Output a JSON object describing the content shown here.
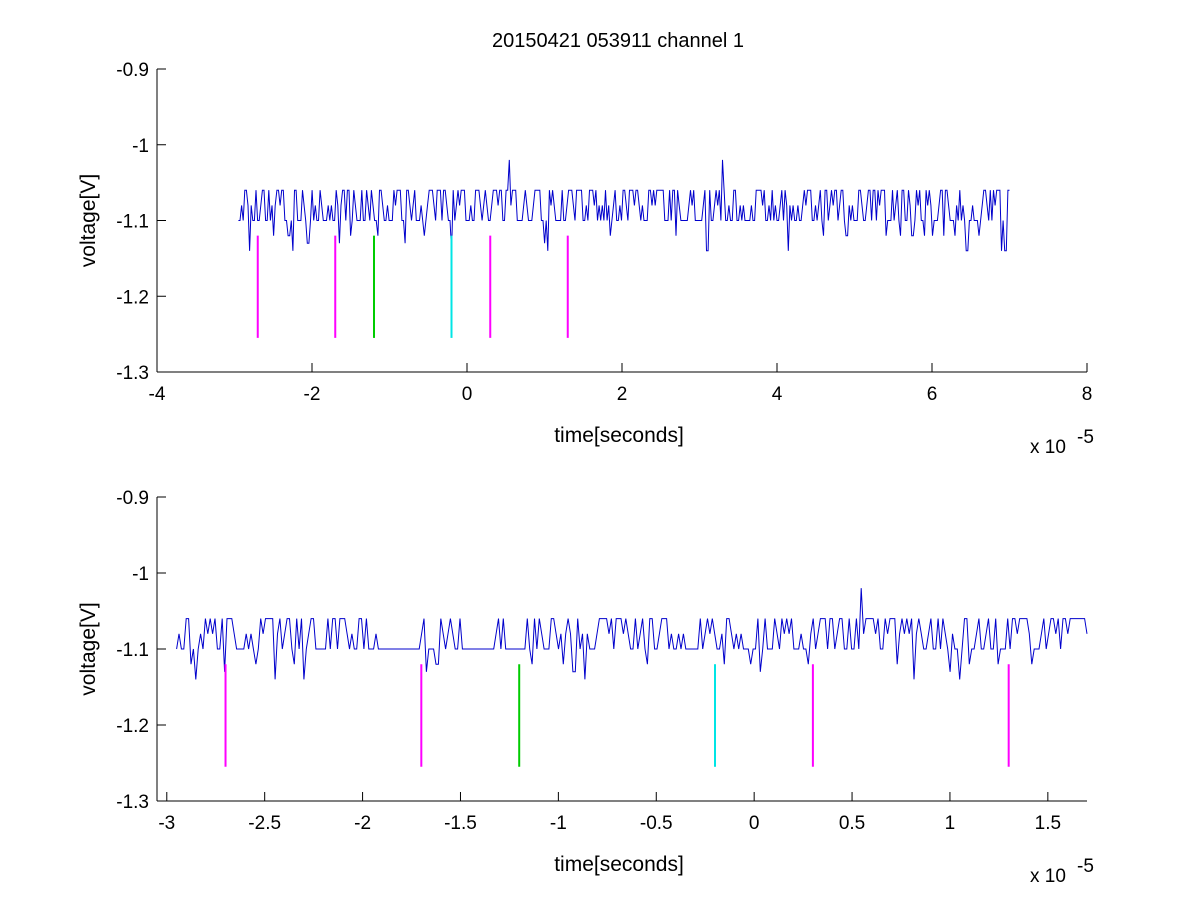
{
  "title": "20150421 053911 channel 1",
  "colors": {
    "signal": "#0000cc",
    "marker_magenta": "#ff00ff",
    "marker_green": "#00cc00",
    "marker_cyan": "#00e5e5",
    "axis": "#000000"
  },
  "chart_data": [
    {
      "type": "line",
      "xlabel": "time[seconds]",
      "ylabel": "voltage[V]",
      "x_exponent_label": "x 10",
      "x_exponent": "-5",
      "xlim": [
        -4,
        8
      ],
      "ylim": [
        -1.3,
        -0.9
      ],
      "y_reversed": true,
      "xticks": [
        "-4",
        "-2",
        "0",
        "2",
        "4",
        "6",
        "8"
      ],
      "xtick_values": [
        -4,
        -2,
        0,
        2,
        4,
        6,
        8
      ],
      "yticks": [
        "-0.9",
        "-1",
        "-1.1",
        "-1.2",
        "-1.3"
      ],
      "ytick_values": [
        -0.9,
        -1.0,
        -1.1,
        -1.2,
        -1.3
      ],
      "series": [
        {
          "color": "#0000cc",
          "x_range": [
            -2.95,
            7.0
          ],
          "levels": [
            -1.06,
            -1.08,
            -1.1
          ],
          "dips": [
            [
              -2.8,
              -1.14
            ],
            [
              -2.5,
              -1.12
            ],
            [
              -2.3,
              -1.12
            ],
            [
              -2.25,
              -1.14
            ],
            [
              -2.05,
              -1.13
            ],
            [
              -1.65,
              -1.13
            ],
            [
              -1.5,
              -1.12
            ],
            [
              -1.15,
              -1.12
            ],
            [
              -0.8,
              -1.13
            ],
            [
              -0.55,
              -1.12
            ],
            [
              -0.2,
              -1.14
            ],
            [
              1.0,
              -1.13
            ],
            [
              1.05,
              -1.14
            ],
            [
              1.85,
              -1.12
            ],
            [
              2.7,
              -1.12
            ],
            [
              3.1,
              -1.14
            ],
            [
              4.15,
              -1.14
            ],
            [
              4.6,
              -1.12
            ],
            [
              4.9,
              -1.12
            ],
            [
              5.4,
              -1.12
            ],
            [
              5.6,
              -1.12
            ],
            [
              5.75,
              -1.12
            ],
            [
              5.9,
              -1.12
            ],
            [
              6.0,
              -1.12
            ],
            [
              6.15,
              -1.12
            ],
            [
              6.3,
              -1.12
            ],
            [
              6.45,
              -1.14
            ],
            [
              6.6,
              -1.12
            ],
            [
              6.9,
              -1.14
            ],
            [
              6.95,
              -1.14
            ]
          ],
          "spikes": [
            [
              0.55,
              -1.02
            ],
            [
              3.3,
              -1.02
            ]
          ]
        }
      ],
      "markers": [
        {
          "x": -2.7,
          "color": "#ff00ff",
          "y_top": -1.12,
          "y_bottom": -1.255
        },
        {
          "x": -1.7,
          "color": "#ff00ff",
          "y_top": -1.12,
          "y_bottom": -1.255
        },
        {
          "x": -1.2,
          "color": "#00cc00",
          "y_top": -1.12,
          "y_bottom": -1.255
        },
        {
          "x": -0.2,
          "color": "#00e5e5",
          "y_top": -1.12,
          "y_bottom": -1.255
        },
        {
          "x": 0.3,
          "color": "#ff00ff",
          "y_top": -1.12,
          "y_bottom": -1.255
        },
        {
          "x": 1.3,
          "color": "#ff00ff",
          "y_top": -1.12,
          "y_bottom": -1.255
        }
      ]
    },
    {
      "type": "line",
      "xlabel": "time[seconds]",
      "ylabel": "voltage[V]",
      "x_exponent_label": "x 10",
      "x_exponent": "-5",
      "xlim": [
        -3.05,
        1.7
      ],
      "ylim": [
        -1.3,
        -0.9
      ],
      "y_reversed": true,
      "xticks": [
        "-3",
        "-2.5",
        "-2",
        "-1.5",
        "-1",
        "-0.5",
        "0",
        "0.5",
        "1",
        "1.5"
      ],
      "xtick_values": [
        -3,
        -2.5,
        -2,
        -1.5,
        -1,
        -0.5,
        0,
        0.5,
        1,
        1.5
      ],
      "yticks": [
        "-0.9",
        "-1",
        "-1.1",
        "-1.2",
        "-1.3"
      ],
      "ytick_values": [
        -0.9,
        -1.0,
        -1.1,
        -1.2,
        -1.3
      ],
      "series": [
        {
          "color": "#0000cc",
          "x_range": [
            -2.95,
            1.7
          ],
          "levels": [
            -1.06,
            -1.08,
            -1.1
          ],
          "flat_segments": [
            [
              -1.93,
              -1.7
            ],
            [
              -1.5,
              -1.35
            ],
            [
              -1.28,
              -1.2
            ]
          ],
          "dips": [
            [
              -2.88,
              -1.12
            ],
            [
              -2.85,
              -1.14
            ],
            [
              -2.7,
              -1.13
            ],
            [
              -2.55,
              -1.12
            ],
            [
              -2.45,
              -1.14
            ],
            [
              -2.35,
              -1.12
            ],
            [
              -2.3,
              -1.14
            ],
            [
              -1.67,
              -1.13
            ],
            [
              -1.62,
              -1.12
            ],
            [
              -1.13,
              -1.12
            ],
            [
              -0.97,
              -1.12
            ],
            [
              -0.92,
              -1.13
            ],
            [
              -0.86,
              -1.14
            ],
            [
              -0.55,
              -1.12
            ],
            [
              -0.15,
              -1.12
            ],
            [
              -0.02,
              -1.12
            ],
            [
              0.03,
              -1.13
            ],
            [
              0.28,
              -1.12
            ],
            [
              0.73,
              -1.12
            ],
            [
              0.82,
              -1.14
            ],
            [
              1.0,
              -1.13
            ],
            [
              1.05,
              -1.14
            ],
            [
              1.1,
              -1.12
            ],
            [
              1.25,
              -1.12
            ],
            [
              1.42,
              -1.12
            ]
          ],
          "spikes": [
            [
              0.55,
              -1.02
            ]
          ]
        }
      ],
      "markers": [
        {
          "x": -2.7,
          "color": "#ff00ff",
          "y_top": -1.12,
          "y_bottom": -1.255
        },
        {
          "x": -1.7,
          "color": "#ff00ff",
          "y_top": -1.12,
          "y_bottom": -1.255
        },
        {
          "x": -1.2,
          "color": "#00cc00",
          "y_top": -1.12,
          "y_bottom": -1.255
        },
        {
          "x": -0.2,
          "color": "#00e5e5",
          "y_top": -1.12,
          "y_bottom": -1.255
        },
        {
          "x": 0.3,
          "color": "#ff00ff",
          "y_top": -1.12,
          "y_bottom": -1.255
        },
        {
          "x": 1.3,
          "color": "#ff00ff",
          "y_top": -1.12,
          "y_bottom": -1.255
        }
      ]
    }
  ]
}
